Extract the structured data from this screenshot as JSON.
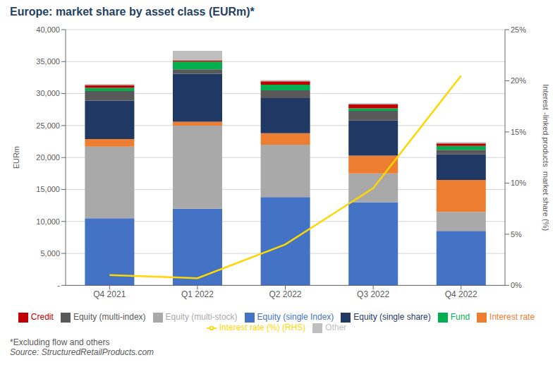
{
  "chart_data": {
    "type": "bar",
    "title": "Europe: market share by asset class (EURm)*",
    "ylabel": "EURm",
    "y2label": "Interest -linked products  market share (%)",
    "annotations": [
      "*Excluding flow and others",
      "Source: StructuredRetailProducts.com"
    ],
    "categories": [
      "Q4 2021",
      "Q1 2022",
      "Q2 2022",
      "Q3 2022",
      "Q4 2022"
    ],
    "stacked": true,
    "grid": true,
    "series": [
      {
        "name": "Equity (single Index)",
        "color": "#4472C4",
        "values": [
          10500,
          12000,
          13800,
          13000,
          8500
        ]
      },
      {
        "name": "Equity (multi-stock)",
        "color": "#A9A9A9",
        "values": [
          11200,
          13000,
          8200,
          4500,
          3000
        ]
      },
      {
        "name": "Interest rate",
        "color": "#ED7D31",
        "values": [
          1200,
          600,
          1800,
          2800,
          5000
        ]
      },
      {
        "name": "Equity (single share)",
        "color": "#1F3864",
        "values": [
          6000,
          7500,
          5500,
          5500,
          4000
        ]
      },
      {
        "name": "Equity (multi-index)",
        "color": "#595959",
        "values": [
          1500,
          700,
          1200,
          1500,
          700
        ]
      },
      {
        "name": "Fund",
        "color": "#00B050",
        "values": [
          500,
          1200,
          900,
          400,
          600
        ]
      },
      {
        "name": "Credit",
        "color": "#C00000",
        "values": [
          400,
          200,
          500,
          600,
          400
        ]
      },
      {
        "name": "Other",
        "color": "#BFBFBF",
        "values": [
          200,
          1500,
          200,
          200,
          200
        ]
      },
      {
        "name": "Interest rate (%) (RHS)",
        "type": "line",
        "axis": "y2",
        "color": "#FFD700",
        "values": [
          1.0,
          0.7,
          4.0,
          9.5,
          20.5
        ]
      }
    ],
    "ylim": [
      0,
      40000
    ],
    "yticks": [
      {
        "value": 0,
        "label": "-"
      },
      {
        "value": 5000,
        "label": "5,000"
      },
      {
        "value": 10000,
        "label": "10,000"
      },
      {
        "value": 15000,
        "label": "15,000"
      },
      {
        "value": 20000,
        "label": "20,000"
      },
      {
        "value": 25000,
        "label": "25,000"
      },
      {
        "value": 30000,
        "label": "30,000"
      },
      {
        "value": 35000,
        "label": "35,000"
      },
      {
        "value": 40000,
        "label": "40,000"
      }
    ],
    "y2lim": [
      0,
      25
    ],
    "y2ticks": [
      {
        "value": 0,
        "label": "0%"
      },
      {
        "value": 5,
        "label": "5%"
      },
      {
        "value": 10,
        "label": "10%"
      },
      {
        "value": 15,
        "label": "15%"
      },
      {
        "value": 20,
        "label": "20%"
      },
      {
        "value": 25,
        "label": "25%"
      }
    ]
  }
}
